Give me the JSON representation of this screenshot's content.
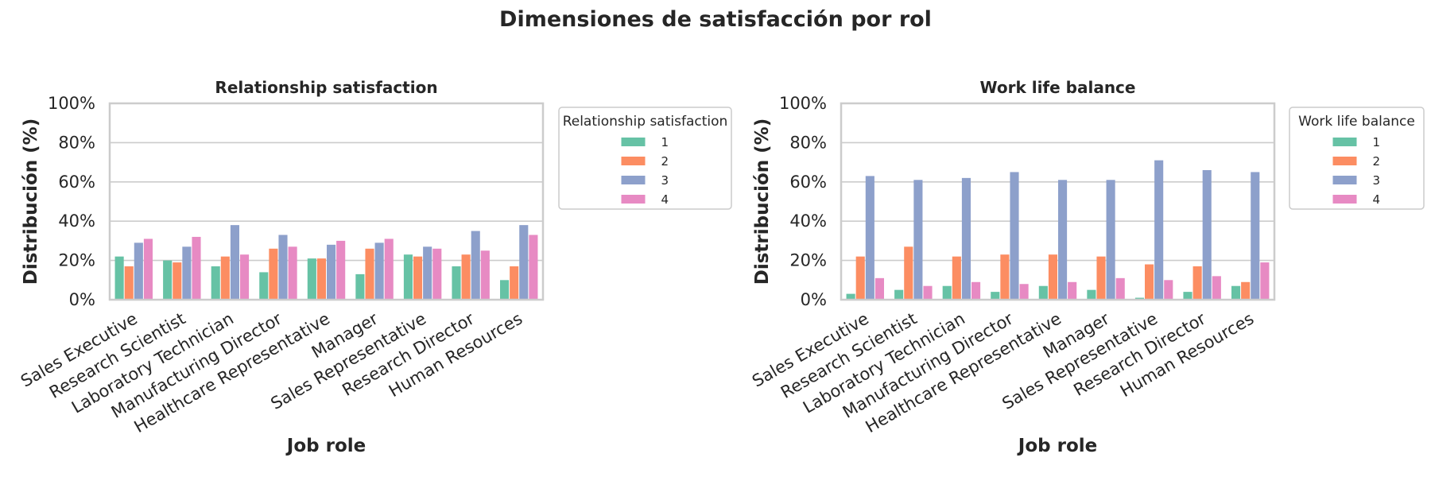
{
  "figure": {
    "title": "Dimensiones de satisfacción por rol"
  },
  "chart_data": [
    {
      "type": "bar",
      "title": "Relationship satisfaction",
      "xlabel": "Job role",
      "ylabel": "Distribución (%)",
      "ylim": [
        0,
        100
      ],
      "yticks": [
        "0%",
        "20%",
        "40%",
        "60%",
        "80%",
        "100%"
      ],
      "grid": "horizontal",
      "legend": {
        "title": "Relationship satisfaction",
        "placement": "outside-right"
      },
      "categories": [
        "Sales Executive",
        "Research Scientist",
        "Laboratory Technician",
        "Manufacturing Director",
        "Healthcare Representative",
        "Manager",
        "Sales Representative",
        "Research Director",
        "Human Resources"
      ],
      "series": [
        {
          "name": "1",
          "color": "#66c2a5",
          "values": [
            22,
            20,
            17,
            14,
            21,
            13,
            23,
            17,
            10
          ]
        },
        {
          "name": "2",
          "color": "#fc8d62",
          "values": [
            17,
            19,
            22,
            26,
            21,
            26,
            22,
            23,
            17
          ]
        },
        {
          "name": "3",
          "color": "#8da0cb",
          "values": [
            29,
            27,
            38,
            33,
            28,
            29,
            27,
            35,
            38
          ]
        },
        {
          "name": "4",
          "color": "#e78ac3",
          "values": [
            31,
            32,
            23,
            27,
            30,
            31,
            26,
            25,
            33
          ]
        }
      ]
    },
    {
      "type": "bar",
      "title": "Work life balance",
      "xlabel": "Job role",
      "ylabel": "Distribución (%)",
      "ylim": [
        0,
        100
      ],
      "yticks": [
        "0%",
        "20%",
        "40%",
        "60%",
        "80%",
        "100%"
      ],
      "grid": "horizontal",
      "legend": {
        "title": "Work life balance",
        "placement": "outside-right"
      },
      "categories": [
        "Sales Executive",
        "Research Scientist",
        "Laboratory Technician",
        "Manufacturing Director",
        "Healthcare Representative",
        "Manager",
        "Sales Representative",
        "Research Director",
        "Human Resources"
      ],
      "series": [
        {
          "name": "1",
          "color": "#66c2a5",
          "values": [
            3,
            5,
            7,
            4,
            7,
            5,
            1,
            4,
            7
          ]
        },
        {
          "name": "2",
          "color": "#fc8d62",
          "values": [
            22,
            27,
            22,
            23,
            23,
            22,
            18,
            17,
            9
          ]
        },
        {
          "name": "3",
          "color": "#8da0cb",
          "values": [
            63,
            61,
            62,
            65,
            61,
            61,
            71,
            66,
            65
          ]
        },
        {
          "name": "4",
          "color": "#e78ac3",
          "values": [
            11,
            7,
            9,
            8,
            9,
            11,
            10,
            12,
            19
          ]
        }
      ]
    }
  ]
}
